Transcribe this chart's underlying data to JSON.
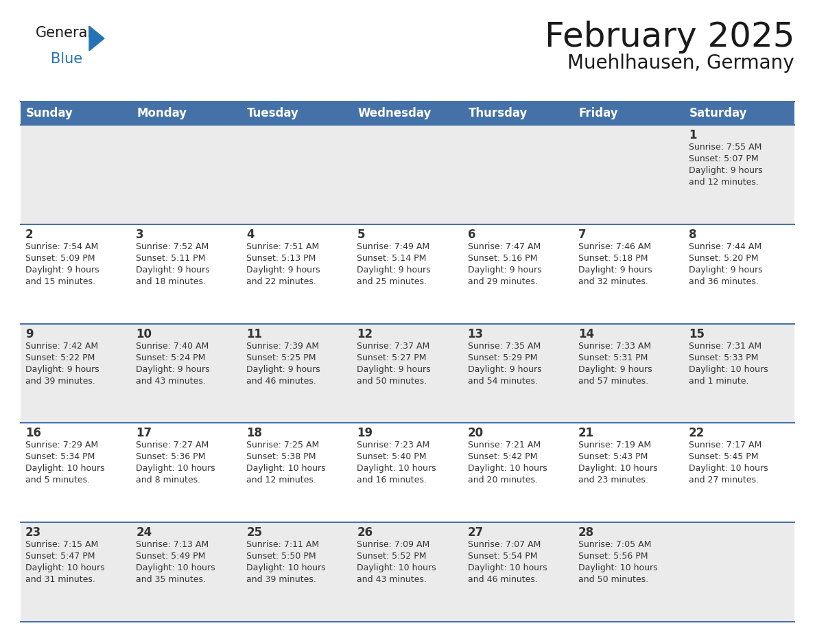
{
  "title": "February 2025",
  "subtitle": "Muehlhausen, Germany",
  "header_bg": "#4472a8",
  "header_text": "#ffffff",
  "row_bg_odd": "#ebebeb",
  "row_bg_even": "#ffffff",
  "cell_border": "#4472a8",
  "day_names": [
    "Sunday",
    "Monday",
    "Tuesday",
    "Wednesday",
    "Thursday",
    "Friday",
    "Saturday"
  ],
  "days": [
    {
      "date": 1,
      "col": 6,
      "row": 0,
      "sunrise": "7:55 AM",
      "sunset": "5:07 PM",
      "daylight": "9 hours and 12 minutes"
    },
    {
      "date": 2,
      "col": 0,
      "row": 1,
      "sunrise": "7:54 AM",
      "sunset": "5:09 PM",
      "daylight": "9 hours and 15 minutes"
    },
    {
      "date": 3,
      "col": 1,
      "row": 1,
      "sunrise": "7:52 AM",
      "sunset": "5:11 PM",
      "daylight": "9 hours and 18 minutes"
    },
    {
      "date": 4,
      "col": 2,
      "row": 1,
      "sunrise": "7:51 AM",
      "sunset": "5:13 PM",
      "daylight": "9 hours and 22 minutes"
    },
    {
      "date": 5,
      "col": 3,
      "row": 1,
      "sunrise": "7:49 AM",
      "sunset": "5:14 PM",
      "daylight": "9 hours and 25 minutes"
    },
    {
      "date": 6,
      "col": 4,
      "row": 1,
      "sunrise": "7:47 AM",
      "sunset": "5:16 PM",
      "daylight": "9 hours and 29 minutes"
    },
    {
      "date": 7,
      "col": 5,
      "row": 1,
      "sunrise": "7:46 AM",
      "sunset": "5:18 PM",
      "daylight": "9 hours and 32 minutes"
    },
    {
      "date": 8,
      "col": 6,
      "row": 1,
      "sunrise": "7:44 AM",
      "sunset": "5:20 PM",
      "daylight": "9 hours and 36 minutes"
    },
    {
      "date": 9,
      "col": 0,
      "row": 2,
      "sunrise": "7:42 AM",
      "sunset": "5:22 PM",
      "daylight": "9 hours and 39 minutes"
    },
    {
      "date": 10,
      "col": 1,
      "row": 2,
      "sunrise": "7:40 AM",
      "sunset": "5:24 PM",
      "daylight": "9 hours and 43 minutes"
    },
    {
      "date": 11,
      "col": 2,
      "row": 2,
      "sunrise": "7:39 AM",
      "sunset": "5:25 PM",
      "daylight": "9 hours and 46 minutes"
    },
    {
      "date": 12,
      "col": 3,
      "row": 2,
      "sunrise": "7:37 AM",
      "sunset": "5:27 PM",
      "daylight": "9 hours and 50 minutes"
    },
    {
      "date": 13,
      "col": 4,
      "row": 2,
      "sunrise": "7:35 AM",
      "sunset": "5:29 PM",
      "daylight": "9 hours and 54 minutes"
    },
    {
      "date": 14,
      "col": 5,
      "row": 2,
      "sunrise": "7:33 AM",
      "sunset": "5:31 PM",
      "daylight": "9 hours and 57 minutes"
    },
    {
      "date": 15,
      "col": 6,
      "row": 2,
      "sunrise": "7:31 AM",
      "sunset": "5:33 PM",
      "daylight": "10 hours and 1 minute"
    },
    {
      "date": 16,
      "col": 0,
      "row": 3,
      "sunrise": "7:29 AM",
      "sunset": "5:34 PM",
      "daylight": "10 hours and 5 minutes"
    },
    {
      "date": 17,
      "col": 1,
      "row": 3,
      "sunrise": "7:27 AM",
      "sunset": "5:36 PM",
      "daylight": "10 hours and 8 minutes"
    },
    {
      "date": 18,
      "col": 2,
      "row": 3,
      "sunrise": "7:25 AM",
      "sunset": "5:38 PM",
      "daylight": "10 hours and 12 minutes"
    },
    {
      "date": 19,
      "col": 3,
      "row": 3,
      "sunrise": "7:23 AM",
      "sunset": "5:40 PM",
      "daylight": "10 hours and 16 minutes"
    },
    {
      "date": 20,
      "col": 4,
      "row": 3,
      "sunrise": "7:21 AM",
      "sunset": "5:42 PM",
      "daylight": "10 hours and 20 minutes"
    },
    {
      "date": 21,
      "col": 5,
      "row": 3,
      "sunrise": "7:19 AM",
      "sunset": "5:43 PM",
      "daylight": "10 hours and 23 minutes"
    },
    {
      "date": 22,
      "col": 6,
      "row": 3,
      "sunrise": "7:17 AM",
      "sunset": "5:45 PM",
      "daylight": "10 hours and 27 minutes"
    },
    {
      "date": 23,
      "col": 0,
      "row": 4,
      "sunrise": "7:15 AM",
      "sunset": "5:47 PM",
      "daylight": "10 hours and 31 minutes"
    },
    {
      "date": 24,
      "col": 1,
      "row": 4,
      "sunrise": "7:13 AM",
      "sunset": "5:49 PM",
      "daylight": "10 hours and 35 minutes"
    },
    {
      "date": 25,
      "col": 2,
      "row": 4,
      "sunrise": "7:11 AM",
      "sunset": "5:50 PM",
      "daylight": "10 hours and 39 minutes"
    },
    {
      "date": 26,
      "col": 3,
      "row": 4,
      "sunrise": "7:09 AM",
      "sunset": "5:52 PM",
      "daylight": "10 hours and 43 minutes"
    },
    {
      "date": 27,
      "col": 4,
      "row": 4,
      "sunrise": "7:07 AM",
      "sunset": "5:54 PM",
      "daylight": "10 hours and 46 minutes"
    },
    {
      "date": 28,
      "col": 5,
      "row": 4,
      "sunrise": "7:05 AM",
      "sunset": "5:56 PM",
      "daylight": "10 hours and 50 minutes"
    }
  ],
  "num_rows": 5,
  "logo_color_general": "#1a1a1a",
  "logo_color_blue": "#2473b5",
  "logo_triangle_color": "#2473b5",
  "title_fontsize": 36,
  "subtitle_fontsize": 20,
  "header_fontsize": 12,
  "date_fontsize": 12,
  "info_fontsize": 9
}
